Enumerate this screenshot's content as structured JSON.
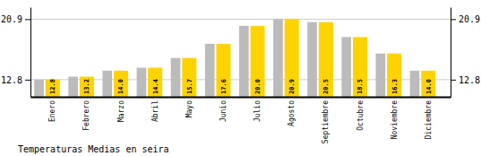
{
  "chart_data": {
    "type": "bar",
    "title": "Temperaturas Medias en seira",
    "categories": [
      "Enero",
      "Febrero",
      "Marzo",
      "Abril",
      "Mayo",
      "Junio",
      "Julio",
      "Agosto",
      "Septiembre",
      "Octubre",
      "Noviembre",
      "Diciembre"
    ],
    "values": [
      12.8,
      13.2,
      14.0,
      14.4,
      15.7,
      17.6,
      20.0,
      20.9,
      20.5,
      18.5,
      16.3,
      14.0
    ],
    "value_labels": [
      "12.8",
      "13.2",
      "14.0",
      "14.4",
      "15.7",
      "17.6",
      "20.0",
      "20.9",
      "20.5",
      "18.5",
      "16.3",
      "14.0"
    ],
    "color": "#FFD300",
    "ylim": [
      10.5,
      22.5
    ],
    "yticks": [
      12.8,
      20.9
    ],
    "y2lim": [
      10.5,
      22.5
    ],
    "y2ticks": [
      12.8,
      20.9
    ],
    "grid": true,
    "data_labels": true
  }
}
